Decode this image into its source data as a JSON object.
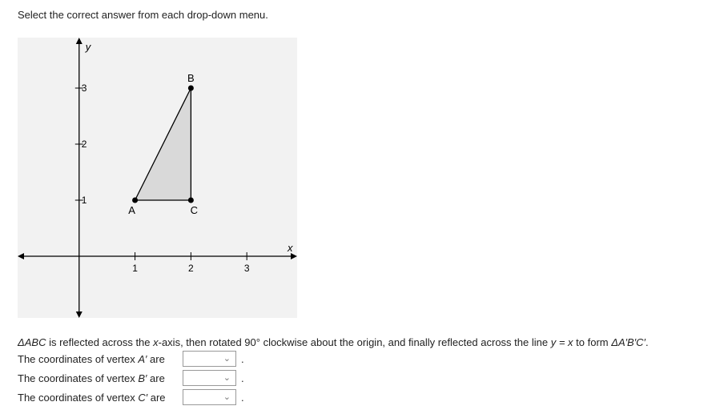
{
  "instruction": "Select the correct answer from each drop-down menu.",
  "chart_data": {
    "type": "scatter",
    "xlabel": "x",
    "ylabel": "y",
    "xlim": [
      -1.1,
      3.9
    ],
    "ylim": [
      -1.1,
      3.9
    ],
    "x_ticks": [
      1,
      2,
      3
    ],
    "y_ticks": [
      1,
      2,
      3
    ],
    "grid": false,
    "polygon": {
      "fill": "#d9d9d9",
      "vertices": [
        "A",
        "B",
        "C"
      ]
    },
    "points": [
      {
        "label": "A",
        "x": 1,
        "y": 1
      },
      {
        "label": "B",
        "x": 2,
        "y": 3
      },
      {
        "label": "C",
        "x": 2,
        "y": 1
      }
    ]
  },
  "question": {
    "tri": "ΔABC",
    "p1": " is reflected across the ",
    "xaxis": "x",
    "p2": "-axis, then rotated 90° clockwise about the origin, and finally reflected across the line ",
    "line": "y = x",
    "p3": " to form ",
    "tri2": "ΔA′B′C′",
    "p4": "."
  },
  "rows": [
    {
      "prefix": "The coordinates of vertex ",
      "vertex": "A′",
      "suffix": " are",
      "value": ""
    },
    {
      "prefix": "The coordinates of vertex ",
      "vertex": "B′",
      "suffix": " are",
      "value": ""
    },
    {
      "prefix": "The coordinates of vertex ",
      "vertex": "C′",
      "suffix": " are",
      "value": ""
    }
  ],
  "chevron_icon": "chevron-down-icon",
  "period": "."
}
